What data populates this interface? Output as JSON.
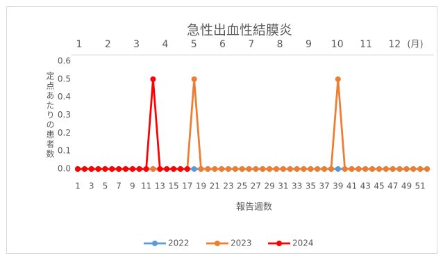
{
  "chart_data": {
    "type": "line",
    "title": "急性出血性結膜炎",
    "y_label": "定点あたりの患者数",
    "x_label": "報告週数",
    "month_labels": [
      "1",
      "2",
      "3",
      "4",
      "5",
      "6",
      "7",
      "8",
      "9",
      "10",
      "11",
      "12"
    ],
    "month_unit": "(月)",
    "categories": [
      1,
      null,
      3,
      null,
      5,
      null,
      7,
      null,
      9,
      null,
      11,
      null,
      13,
      null,
      15,
      null,
      17,
      null,
      19,
      null,
      21,
      null,
      23,
      null,
      25,
      null,
      27,
      null,
      29,
      null,
      31,
      null,
      33,
      null,
      35,
      null,
      37,
      null,
      39,
      null,
      41,
      null,
      43,
      null,
      45,
      null,
      47,
      null,
      49,
      null,
      51,
      null
    ],
    "ylim": [
      0,
      0.6
    ],
    "yticks": [
      {
        "value": 0,
        "label": "0.0"
      },
      0.1,
      0.2,
      0.3,
      0.4,
      0.5,
      0.6
    ],
    "grid": false,
    "legend": "bottom",
    "series": [
      {
        "name": "2022",
        "color": "#5b9bd5",
        "values": [
          0,
          0,
          0,
          0,
          0,
          0,
          0,
          0,
          0,
          0,
          0,
          0,
          0,
          0,
          0,
          0,
          0,
          0,
          0,
          0,
          0,
          0,
          0,
          0,
          0,
          0,
          0,
          0,
          0,
          0,
          0,
          0,
          0,
          0,
          0,
          0,
          0,
          0,
          0,
          0,
          0,
          0,
          0,
          0,
          0,
          0,
          0,
          0,
          0,
          0,
          0,
          0
        ]
      },
      {
        "name": "2023",
        "color": "#ed7d31",
        "values": [
          0,
          0,
          0,
          0,
          0,
          0,
          0,
          0,
          0,
          0,
          0,
          0,
          0,
          0,
          0,
          0,
          0,
          0.5,
          0,
          0,
          0,
          0,
          0,
          0,
          0,
          0,
          0,
          0,
          0,
          0,
          0,
          0,
          0,
          0,
          0,
          0,
          0,
          0,
          0.5,
          0,
          0,
          0,
          0,
          0,
          0,
          0,
          0,
          0,
          0,
          0,
          0,
          0
        ]
      },
      {
        "name": "2024",
        "color": "#ff0000",
        "values": [
          0,
          0,
          0,
          0,
          0,
          0,
          0,
          0,
          0,
          0,
          0,
          0.5,
          0,
          0,
          0,
          0,
          0,
          null,
          null,
          null,
          null,
          null,
          null,
          null,
          null,
          null,
          null,
          null,
          null,
          null,
          null,
          null,
          null,
          null,
          null,
          null,
          null,
          null,
          null,
          null,
          null,
          null,
          null,
          null,
          null,
          null,
          null,
          null,
          null,
          null,
          null,
          null
        ]
      }
    ]
  }
}
